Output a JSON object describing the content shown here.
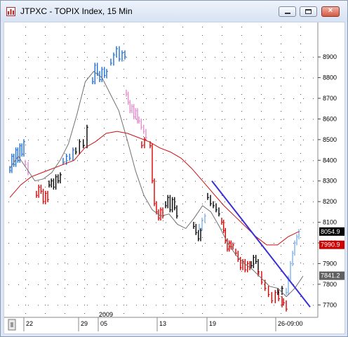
{
  "window": {
    "title": "JTPXC - TOPIX Index, 15 Min",
    "controls": {
      "minimize": "minimize",
      "maximize": "maximize",
      "close": "×"
    }
  },
  "colors": {
    "up_blue": "#1e6fd9",
    "light_blue": "#7fb3e8",
    "black": "#000000",
    "red": "#dd0000",
    "pink": "#e38fd1",
    "ma_gray": "#707070",
    "ma_red": "#cc1111",
    "trendline": "#3a2fd6",
    "badge_last": "#000000",
    "badge_red": "#cc0000",
    "badge_gray": "#606060"
  },
  "chart_data": {
    "type": "line",
    "title": "JTPXC - TOPIX Index, 15 Min",
    "y_axis": {
      "position": "right",
      "range": [
        7650,
        9050
      ],
      "ticks": [
        "8900",
        "8800",
        "8700",
        "8600",
        "8500",
        "8400",
        "8300",
        "8200",
        "8100",
        "8000",
        "7900",
        "7800",
        "7700"
      ]
    },
    "x_axis": {
      "ticks": [
        "22",
        "29",
        "05",
        "13",
        "19",
        "26-09:00"
      ],
      "year_label": "2009"
    },
    "price_badges": [
      {
        "label": "8054.9",
        "value": 8054.9,
        "style": "last"
      },
      {
        "label": "7990.9",
        "value": 7990.9,
        "style": "red"
      },
      {
        "label": "7841.2",
        "value": 7841.2,
        "style": "gray"
      }
    ],
    "series": [
      {
        "role": "bars",
        "segments": [
          {
            "color": "up_blue",
            "values": [
              8350,
              8420,
              8380,
              8450,
              8400,
              8470,
              8430,
              8490
            ]
          },
          {
            "color": "pink",
            "values": [
              8380,
              8340
            ]
          },
          {
            "color": "red",
            "values": [
              8230,
              8270,
              8250,
              8200,
              8240,
              8210
            ]
          },
          {
            "color": "black",
            "values": [
              8280,
              8300,
              8270,
              8320,
              8300,
              8330
            ]
          },
          {
            "color": "up_blue",
            "values": [
              8390,
              8420,
              8410,
              8450
            ]
          },
          {
            "color": "black",
            "values": [
              8440,
              8490,
              8470,
              8560
            ]
          },
          {
            "color": "up_blue",
            "values": [
              8780,
              8860,
              8820,
              8790,
              8840,
              8810,
              8830
            ]
          },
          {
            "color": "up_blue",
            "values": [
              8870,
              8910,
              8940,
              8890,
              8920,
              8900
            ]
          },
          {
            "color": "pink",
            "values": [
              8720,
              8680,
              8640,
              8660,
              8610,
              8640,
              8590
            ]
          },
          {
            "color": "pink",
            "values": [
              8590,
              8560,
              8540,
              8510
            ]
          },
          {
            "color": "red",
            "values": [
              8470,
              8500
            ]
          },
          {
            "color": "red",
            "values": [
              8470,
              8300,
              8190,
              8150,
              8120,
              8160,
              8130
            ]
          },
          {
            "color": "black",
            "values": [
              8180,
              8220,
              8160,
              8210,
              8170,
              8130
            ]
          },
          {
            "color": "black",
            "values": [
              8080,
              8050,
              8020,
              8060
            ]
          },
          {
            "color": "light_blue",
            "values": [
              8070,
              8110,
              8130
            ]
          },
          {
            "color": "black",
            "values": [
              8220,
              8190,
              8180,
              8160,
              8140
            ]
          },
          {
            "color": "red",
            "values": [
              8100,
              8060,
              8010,
              7970,
              8000,
              7980,
              7990
            ]
          },
          {
            "color": "red",
            "values": [
              7950,
              7920,
              7880,
              7910,
              7870,
              7900,
              7880
            ]
          },
          {
            "color": "black",
            "values": [
              7890,
              7930,
              7910,
              7860
            ]
          },
          {
            "color": "red",
            "values": [
              7850,
              7810,
              7780,
              7750,
              7720,
              7760,
              7730,
              7700
            ]
          },
          {
            "color": "black",
            "values": [
              7760,
              7780
            ]
          },
          {
            "color": "red",
            "values": [
              7710,
              7680
            ]
          },
          {
            "color": "light_blue",
            "values": [
              7760,
              7830,
              7900,
              7950,
              8000,
              8030,
              8055
            ]
          }
        ]
      },
      {
        "role": "moving_average_short",
        "color": "ma_gray",
        "values": [
          8360,
          8420,
          8360,
          8300,
          8310,
          8340,
          8400,
          8480,
          8620,
          8780,
          8830,
          8800,
          8720,
          8640,
          8500,
          8350,
          8230,
          8160,
          8130,
          8140,
          8090,
          8070,
          8120,
          8180,
          8150,
          8080,
          8000,
          7940,
          7900,
          7870,
          7830,
          7790,
          7780,
          7740,
          7780,
          7840
        ]
      },
      {
        "role": "moving_average_long",
        "color": "ma_red",
        "values": [
          8220,
          8280,
          8320,
          8340,
          8360,
          8380,
          8400,
          8460,
          8490,
          8530,
          8540,
          8530,
          8510,
          8490,
          8460,
          8440,
          8410,
          8360,
          8300,
          8240,
          8180,
          8130,
          8080,
          8030,
          7990,
          7990,
          8030,
          8055
        ]
      },
      {
        "role": "trendline",
        "color": "trendline",
        "values": [
          8300,
          7690
        ]
      }
    ]
  }
}
